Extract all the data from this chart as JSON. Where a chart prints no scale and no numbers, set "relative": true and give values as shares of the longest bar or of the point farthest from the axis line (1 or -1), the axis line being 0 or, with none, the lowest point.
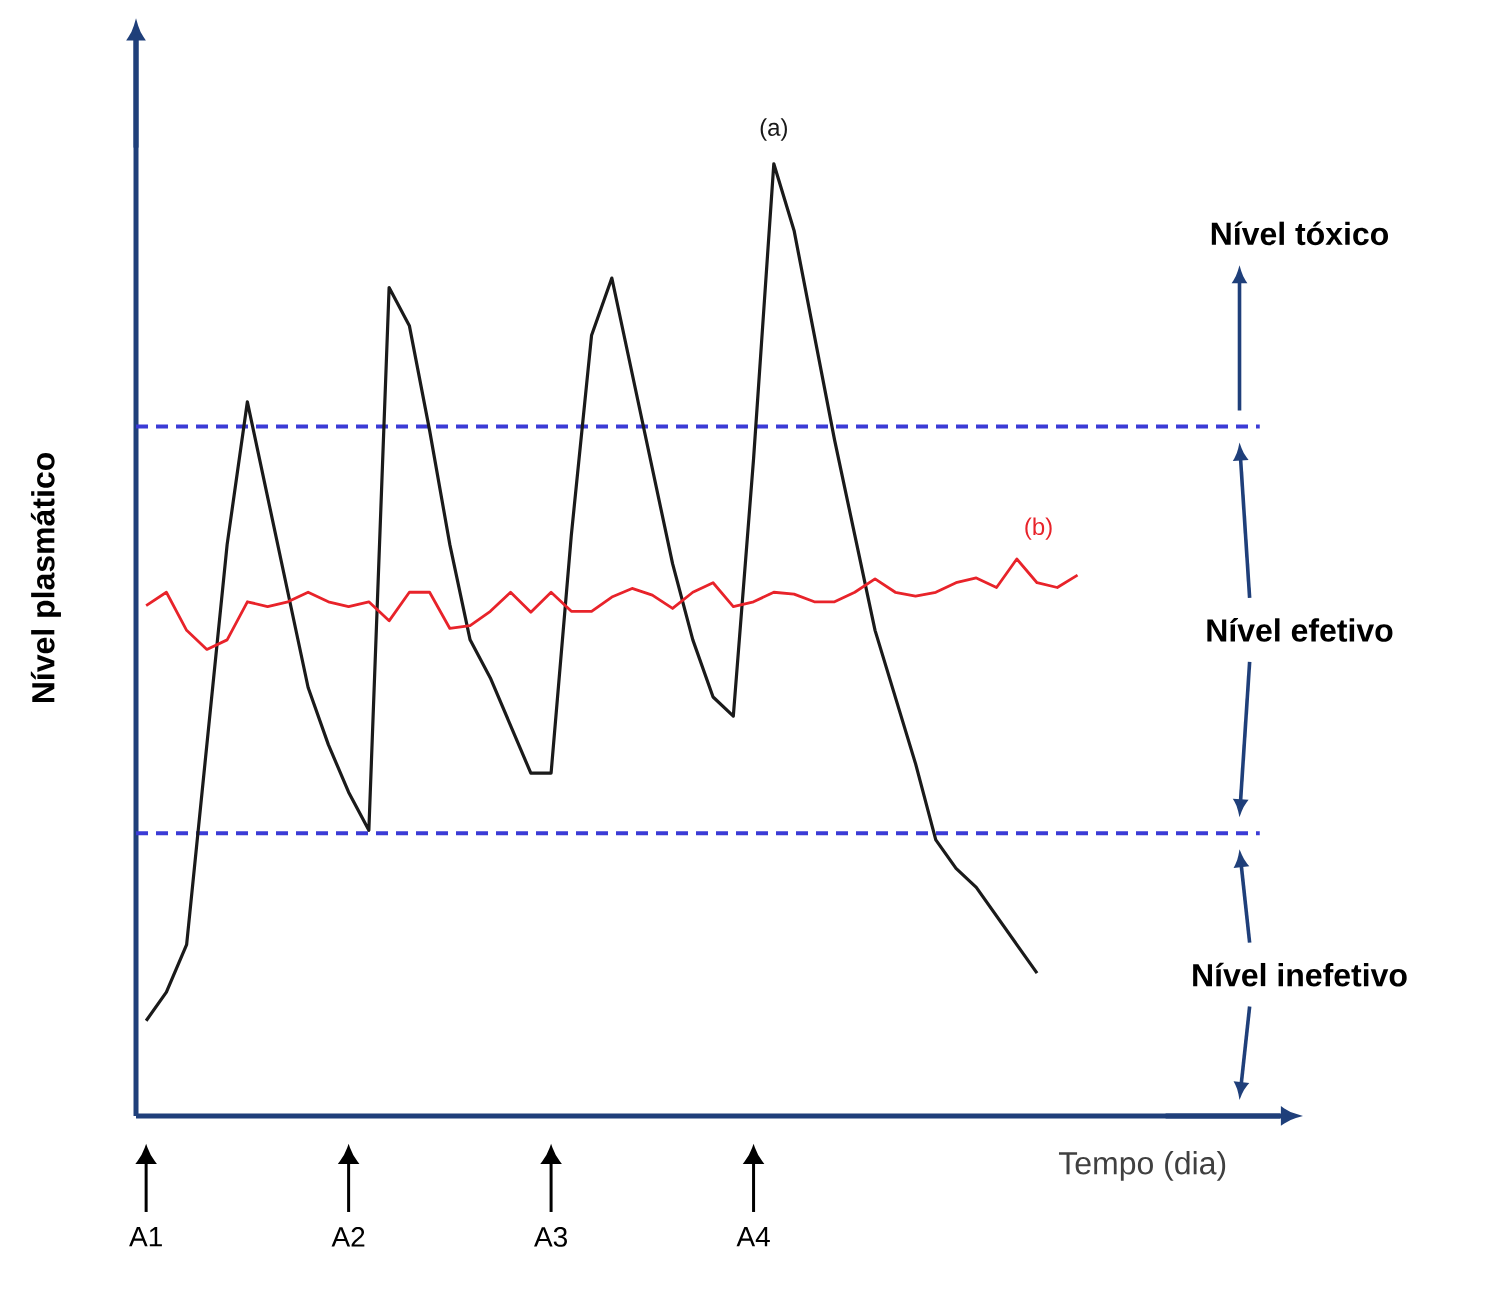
{
  "chart_data": {
    "type": "line",
    "relative": true,
    "xlabel": "Tempo (dia)",
    "ylabel": "Nível plasmático",
    "categories": [
      "A1",
      null,
      null,
      null,
      null,
      null,
      null,
      null,
      null,
      null,
      "A2",
      null,
      null,
      null,
      null,
      null,
      null,
      null,
      null,
      null,
      "A3",
      null,
      null,
      null,
      null,
      null,
      null,
      null,
      null,
      null,
      "A4",
      null,
      null,
      null,
      null,
      null,
      null,
      null,
      null,
      null,
      null,
      null,
      null,
      null,
      null,
      null,
      null
    ],
    "series": [
      {
        "name": "(a)",
        "color": "#1a1a1a",
        "values": [
          0.1,
          0.13,
          0.18,
          0.39,
          0.6,
          0.75,
          0.65,
          0.55,
          0.45,
          0.39,
          0.34,
          0.3,
          0.87,
          0.83,
          0.72,
          0.6,
          0.5,
          0.46,
          0.41,
          0.36,
          0.36,
          0.61,
          0.82,
          0.88,
          0.78,
          0.68,
          0.58,
          0.5,
          0.44,
          0.42,
          0.69,
          1.0,
          0.93,
          0.82,
          0.71,
          0.61,
          0.51,
          0.44,
          0.37,
          0.29,
          0.26,
          0.24,
          0.21,
          0.18,
          0.15,
          null,
          null
        ]
      },
      {
        "name": "(b)",
        "color": "#e8232a",
        "values": [
          0.536,
          0.55,
          0.51,
          0.49,
          0.5,
          0.54,
          0.535,
          0.54,
          0.55,
          0.54,
          0.535,
          0.54,
          0.52,
          0.55,
          0.55,
          0.512,
          0.515,
          0.53,
          0.55,
          0.529,
          0.55,
          0.53,
          0.53,
          0.545,
          0.554,
          0.547,
          0.533,
          0.55,
          0.56,
          0.535,
          0.54,
          0.55,
          0.548,
          0.54,
          0.54,
          0.55,
          0.564,
          0.55,
          0.546,
          0.55,
          0.56,
          0.565,
          0.555,
          0.585,
          0.56,
          0.555,
          0.568
        ]
      }
    ],
    "ref_lines": [
      {
        "axis": "y",
        "value": 0.724,
        "color": "#3b3bd6",
        "line_style": "dashed"
      },
      {
        "axis": "y",
        "value": 0.297,
        "color": "#3b3bd6",
        "line_style": "dashed"
      }
    ],
    "annotations": [
      "Nível tóxico",
      "Nível efetivo",
      "Nível inefetivo"
    ]
  }
}
